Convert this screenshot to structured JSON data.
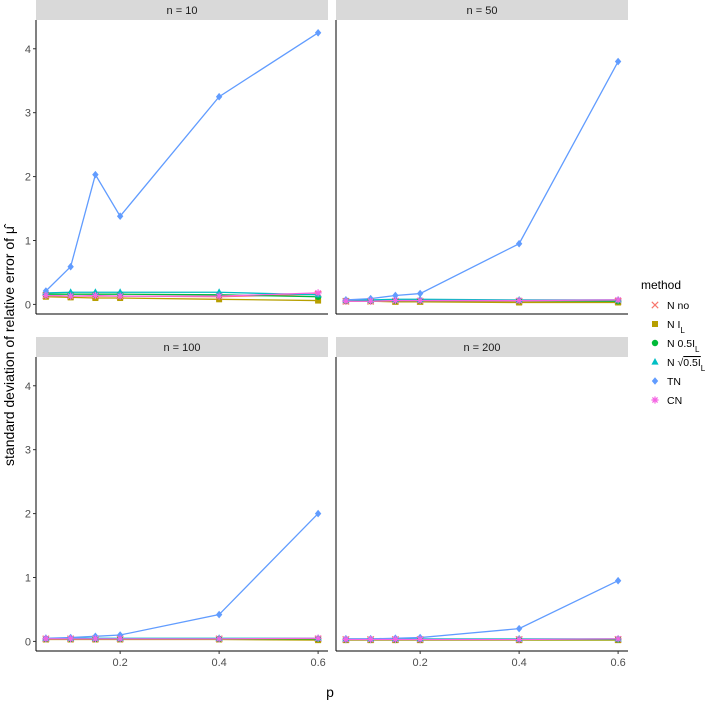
{
  "chart_data": {
    "type": "line",
    "facet_by": "n",
    "xlabel": "p",
    "ylabel": "standard deviation of relative error of μ̂",
    "x": [
      0.05,
      0.1,
      0.15,
      0.2,
      0.4,
      0.6
    ],
    "xlim": [
      0.03,
      0.62
    ],
    "ylim": [
      -0.15,
      4.45
    ],
    "xticks": [
      0.2,
      0.4,
      0.6
    ],
    "yticks": [
      0,
      1,
      2,
      3,
      4
    ],
    "legend": {
      "title": "method",
      "position": "right",
      "entries": [
        {
          "key": "Nno",
          "label": "N no",
          "color": "#F8766D",
          "shape": "cross"
        },
        {
          "key": "NIL",
          "label": "N I_L",
          "color": "#B79F00",
          "shape": "square"
        },
        {
          "key": "N05IL",
          "label": "N 0.5I_L",
          "color": "#00BA38",
          "shape": "circle"
        },
        {
          "key": "Nsqrt05IL",
          "label": "N √0.5I_L",
          "color": "#00BFC4",
          "shape": "triangle"
        },
        {
          "key": "TN",
          "label": "TN",
          "color": "#619CFF",
          "shape": "diamond"
        },
        {
          "key": "CN",
          "label": "CN",
          "color": "#F564E3",
          "shape": "asterisk"
        }
      ]
    },
    "panels": [
      {
        "strip": "n = 10",
        "series": [
          {
            "name": "N no",
            "values": [
              0.14,
              0.13,
              0.13,
              0.13,
              0.12,
              0.16
            ]
          },
          {
            "name": "N I_L",
            "values": [
              0.12,
              0.11,
              0.1,
              0.1,
              0.08,
              0.06
            ]
          },
          {
            "name": "N 0.5I_L",
            "values": [
              0.16,
              0.16,
              0.16,
              0.16,
              0.15,
              0.12
            ]
          },
          {
            "name": "N √0.5I_L",
            "values": [
              0.18,
              0.19,
              0.19,
              0.19,
              0.19,
              0.15
            ]
          },
          {
            "name": "TN",
            "values": [
              0.21,
              0.59,
              2.03,
              1.38,
              3.25,
              4.25
            ]
          },
          {
            "name": "CN",
            "values": [
              0.14,
              0.13,
              0.14,
              0.13,
              0.13,
              0.18
            ]
          }
        ]
      },
      {
        "strip": "n = 50",
        "series": [
          {
            "name": "N no",
            "values": [
              0.05,
              0.05,
              0.05,
              0.05,
              0.05,
              0.05
            ]
          },
          {
            "name": "N I_L",
            "values": [
              0.05,
              0.05,
              0.04,
              0.04,
              0.03,
              0.03
            ]
          },
          {
            "name": "N 0.5I_L",
            "values": [
              0.06,
              0.06,
              0.06,
              0.06,
              0.06,
              0.05
            ]
          },
          {
            "name": "N √0.5I_L",
            "values": [
              0.07,
              0.07,
              0.08,
              0.08,
              0.07,
              0.07
            ]
          },
          {
            "name": "TN",
            "values": [
              0.07,
              0.09,
              0.14,
              0.17,
              0.95,
              3.8
            ]
          },
          {
            "name": "CN",
            "values": [
              0.05,
              0.05,
              0.06,
              0.06,
              0.06,
              0.07
            ]
          }
        ]
      },
      {
        "strip": "n = 100",
        "series": [
          {
            "name": "N no",
            "values": [
              0.04,
              0.04,
              0.04,
              0.04,
              0.04,
              0.04
            ]
          },
          {
            "name": "N I_L",
            "values": [
              0.03,
              0.03,
              0.03,
              0.03,
              0.03,
              0.02
            ]
          },
          {
            "name": "N 0.5I_L",
            "values": [
              0.04,
              0.04,
              0.04,
              0.04,
              0.04,
              0.04
            ]
          },
          {
            "name": "N √0.5I_L",
            "values": [
              0.05,
              0.05,
              0.05,
              0.05,
              0.05,
              0.05
            ]
          },
          {
            "name": "TN",
            "values": [
              0.05,
              0.06,
              0.08,
              0.1,
              0.42,
              2.0
            ]
          },
          {
            "name": "CN",
            "values": [
              0.04,
              0.04,
              0.04,
              0.04,
              0.04,
              0.05
            ]
          }
        ]
      },
      {
        "strip": "n = 200",
        "series": [
          {
            "name": "N no",
            "values": [
              0.03,
              0.03,
              0.03,
              0.03,
              0.03,
              0.03
            ]
          },
          {
            "name": "N I_L",
            "values": [
              0.02,
              0.02,
              0.02,
              0.02,
              0.02,
              0.02
            ]
          },
          {
            "name": "N 0.5I_L",
            "values": [
              0.03,
              0.03,
              0.03,
              0.03,
              0.03,
              0.03
            ]
          },
          {
            "name": "N √0.5I_L",
            "values": [
              0.04,
              0.04,
              0.04,
              0.04,
              0.04,
              0.04
            ]
          },
          {
            "name": "TN",
            "values": [
              0.04,
              0.04,
              0.05,
              0.06,
              0.2,
              0.95
            ]
          },
          {
            "name": "CN",
            "values": [
              0.03,
              0.03,
              0.03,
              0.03,
              0.03,
              0.04
            ]
          }
        ]
      }
    ]
  }
}
